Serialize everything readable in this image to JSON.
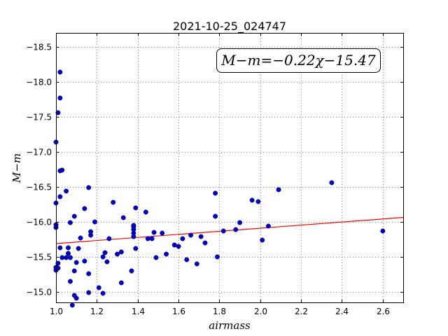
{
  "chart_data": {
    "type": "scatter",
    "title": "2021-10-25_024747",
    "xlabel": "airmass",
    "ylabel": "M−m",
    "xlim": [
      1.0,
      2.7
    ],
    "ylim": [
      -18.7,
      -14.85
    ],
    "y_inverted": true,
    "grid": true,
    "grid_style": "dotted",
    "x_ticks": [
      1.0,
      1.2,
      1.4,
      1.6,
      1.8,
      2.0,
      2.2,
      2.4,
      2.6
    ],
    "x_tick_labels": [
      "1.0",
      "1.2",
      "1.4",
      "1.6",
      "1.8",
      "2.0",
      "2.2",
      "2.4",
      "2.6"
    ],
    "y_ticks": [
      -15.0,
      -15.5,
      -16.0,
      -16.5,
      -17.0,
      -17.5,
      -18.0,
      -18.5
    ],
    "y_tick_labels": [
      "−15.0",
      "−15.5",
      "−16.0",
      "−16.5",
      "−17.0",
      "−17.5",
      "−18.0",
      "−18.5"
    ],
    "annotation": "M−m=−0.22χ−15.47",
    "annotation_position": "top-right",
    "fit_line": {
      "slope": -0.22,
      "intercept": -15.47,
      "color": "#ff0000"
    },
    "point_color": "#0000cc",
    "points": [
      {
        "x": 1.0,
        "y": -15.31
      },
      {
        "x": 1.0,
        "y": -15.35
      },
      {
        "x": 1.01,
        "y": -15.34
      },
      {
        "x": 1.0,
        "y": -15.92
      },
      {
        "x": 1.0,
        "y": -15.96
      },
      {
        "x": 1.0,
        "y": -16.27
      },
      {
        "x": 1.0,
        "y": -17.14
      },
      {
        "x": 1.01,
        "y": -15.41
      },
      {
        "x": 1.02,
        "y": -15.63
      },
      {
        "x": 1.03,
        "y": -15.49
      },
      {
        "x": 1.02,
        "y": -16.36
      },
      {
        "x": 1.02,
        "y": -16.73
      },
      {
        "x": 1.03,
        "y": -16.74
      },
      {
        "x": 1.01,
        "y": -17.56
      },
      {
        "x": 1.02,
        "y": -17.77
      },
      {
        "x": 1.02,
        "y": -18.14
      },
      {
        "x": 1.05,
        "y": -15.49
      },
      {
        "x": 1.06,
        "y": -15.55
      },
      {
        "x": 1.06,
        "y": -15.63
      },
      {
        "x": 1.07,
        "y": -15.49
      },
      {
        "x": 1.07,
        "y": -15.15
      },
      {
        "x": 1.08,
        "y": -14.81
      },
      {
        "x": 1.09,
        "y": -14.95
      },
      {
        "x": 1.1,
        "y": -14.91
      },
      {
        "x": 1.09,
        "y": -15.3
      },
      {
        "x": 1.1,
        "y": -15.42
      },
      {
        "x": 1.11,
        "y": -15.62
      },
      {
        "x": 1.05,
        "y": -16.44
      },
      {
        "x": 1.07,
        "y": -15.99
      },
      {
        "x": 1.09,
        "y": -16.08
      },
      {
        "x": 1.12,
        "y": -15.77
      },
      {
        "x": 1.14,
        "y": -15.44
      },
      {
        "x": 1.14,
        "y": -16.19
      },
      {
        "x": 1.16,
        "y": -14.99
      },
      {
        "x": 1.16,
        "y": -15.26
      },
      {
        "x": 1.17,
        "y": -15.81
      },
      {
        "x": 1.17,
        "y": -15.86
      },
      {
        "x": 1.19,
        "y": -16.0
      },
      {
        "x": 1.16,
        "y": -16.49
      },
      {
        "x": 1.21,
        "y": -15.06
      },
      {
        "x": 1.23,
        "y": -14.98
      },
      {
        "x": 1.23,
        "y": -15.5
      },
      {
        "x": 1.24,
        "y": -15.56
      },
      {
        "x": 1.25,
        "y": -15.43
      },
      {
        "x": 1.26,
        "y": -15.76
      },
      {
        "x": 1.28,
        "y": -16.28
      },
      {
        "x": 1.3,
        "y": -15.54
      },
      {
        "x": 1.32,
        "y": -15.13
      },
      {
        "x": 1.32,
        "y": -15.57
      },
      {
        "x": 1.33,
        "y": -16.06
      },
      {
        "x": 1.37,
        "y": -15.3
      },
      {
        "x": 1.38,
        "y": -15.79
      },
      {
        "x": 1.38,
        "y": -15.84
      },
      {
        "x": 1.38,
        "y": -15.89
      },
      {
        "x": 1.38,
        "y": -15.93
      },
      {
        "x": 1.38,
        "y": -15.95
      },
      {
        "x": 1.39,
        "y": -15.62
      },
      {
        "x": 1.39,
        "y": -16.2
      },
      {
        "x": 1.44,
        "y": -16.14
      },
      {
        "x": 1.45,
        "y": -15.76
      },
      {
        "x": 1.47,
        "y": -15.76
      },
      {
        "x": 1.48,
        "y": -15.85
      },
      {
        "x": 1.49,
        "y": -15.49
      },
      {
        "x": 1.52,
        "y": -15.84
      },
      {
        "x": 1.54,
        "y": -15.54
      },
      {
        "x": 1.58,
        "y": -15.67
      },
      {
        "x": 1.6,
        "y": -15.65
      },
      {
        "x": 1.62,
        "y": -15.76
      },
      {
        "x": 1.64,
        "y": -15.46
      },
      {
        "x": 1.66,
        "y": -15.81
      },
      {
        "x": 1.69,
        "y": -15.4
      },
      {
        "x": 1.71,
        "y": -15.79
      },
      {
        "x": 1.73,
        "y": -15.7
      },
      {
        "x": 1.78,
        "y": -16.08
      },
      {
        "x": 1.78,
        "y": -16.41
      },
      {
        "x": 1.79,
        "y": -15.5
      },
      {
        "x": 1.82,
        "y": -15.87
      },
      {
        "x": 1.88,
        "y": -15.89
      },
      {
        "x": 1.9,
        "y": -15.99
      },
      {
        "x": 1.96,
        "y": -16.31
      },
      {
        "x": 1.99,
        "y": -16.29
      },
      {
        "x": 2.01,
        "y": -15.74
      },
      {
        "x": 2.04,
        "y": -15.94
      },
      {
        "x": 2.09,
        "y": -16.46
      },
      {
        "x": 2.35,
        "y": -16.56
      },
      {
        "x": 2.6,
        "y": -15.87
      }
    ]
  }
}
